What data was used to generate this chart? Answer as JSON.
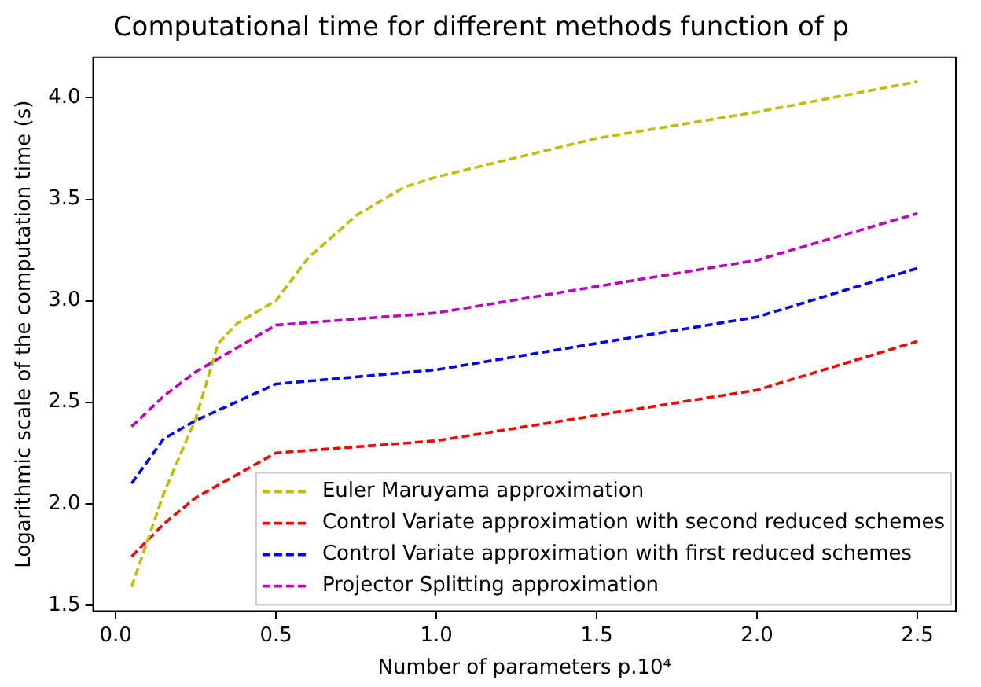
{
  "chart_data": {
    "type": "line",
    "title": "Computational time for different methods function of p",
    "xlabel": "Number of parameters p.10⁴",
    "ylabel": "Logarithmic scale of the computation time (s)",
    "xlim": [
      -0.07,
      2.62
    ],
    "xticks": [
      {
        "value": 0,
        "label": "0.0"
      },
      0.5,
      {
        "value": 1,
        "label": "1.0"
      },
      1.5,
      {
        "value": 2,
        "label": "2.0"
      },
      2.5
    ],
    "ylim": [
      1.47,
      4.2
    ],
    "yticks": [
      1.5,
      {
        "value": 2,
        "label": "2.0"
      },
      2.5,
      {
        "value": 3,
        "label": "3.0"
      },
      3.5,
      {
        "value": 4,
        "label": "4.0"
      }
    ],
    "grid": false,
    "legend": "bottom right",
    "marker": "none",
    "line_style": "dashed",
    "series": [
      {
        "name": "Euler Maruyama approximation",
        "color": "#bfbf00",
        "x": [
          0.05,
          0.15,
          0.25,
          0.32,
          0.38,
          0.5,
          0.6,
          0.75,
          0.9,
          1.0,
          1.5,
          2.0,
          2.5
        ],
        "values": [
          1.59,
          2.05,
          2.42,
          2.79,
          2.89,
          3.0,
          3.21,
          3.42,
          3.56,
          3.61,
          3.8,
          3.93,
          4.08
        ]
      },
      {
        "name": "Control Variate approximation with second reduced schemes",
        "color": "#ff0000",
        "x": [
          0.05,
          0.15,
          0.25,
          0.5,
          1.0,
          2.0,
          2.5
        ],
        "values": [
          1.74,
          1.9,
          2.03,
          2.25,
          2.31,
          2.56,
          2.8
        ]
      },
      {
        "name": "Control Variate approximation with first reduced schemes",
        "color": "#0000ff",
        "x": [
          0.05,
          0.15,
          0.25,
          0.5,
          1.0,
          2.0,
          2.5
        ],
        "values": [
          2.1,
          2.32,
          2.41,
          2.59,
          2.66,
          2.92,
          3.16
        ]
      },
      {
        "name": "Projector Splitting approximation",
        "color": "#bf00bf",
        "x": [
          0.05,
          0.15,
          0.25,
          0.5,
          1.0,
          2.0,
          2.5
        ],
        "values": [
          2.38,
          2.53,
          2.65,
          2.88,
          2.94,
          3.2,
          3.43
        ]
      }
    ]
  }
}
